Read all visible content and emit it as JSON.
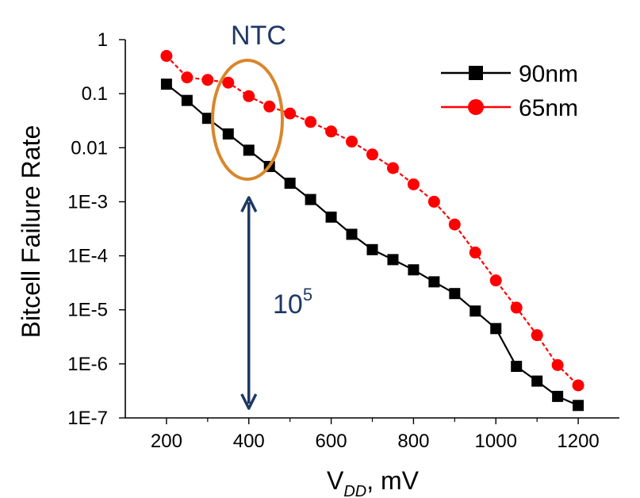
{
  "chart_data": {
    "type": "line",
    "title": "",
    "xlabel": {
      "main": "V",
      "sub": "DD",
      "rest": ", mV"
    },
    "ylabel": "Bitcell Failure Rate",
    "y_scale": "log",
    "xlim": [
      100,
      1300
    ],
    "ylim": [
      1e-07,
      1
    ],
    "grid": false,
    "legend_position": "top-right",
    "x_ticks": [
      200,
      400,
      600,
      800,
      1000,
      1200
    ],
    "x_tick_labels": [
      "200",
      "400",
      "600",
      "800",
      "1000",
      "1200"
    ],
    "y_ticks": [
      1,
      0.1,
      0.01,
      0.001,
      0.0001,
      1e-05,
      1e-06,
      1e-07
    ],
    "y_tick_labels": [
      "1",
      "0.1",
      "0.01",
      "1E-3",
      "1E-4",
      "1E-5",
      "1E-6",
      "1E-7"
    ],
    "series": [
      {
        "name": "90nm",
        "color": "#000000",
        "marker": "square",
        "x": [
          200,
          250,
          300,
          350,
          400,
          450,
          500,
          550,
          600,
          650,
          700,
          750,
          800,
          850,
          900,
          950,
          1000,
          1050,
          1100,
          1150,
          1200
        ],
        "values": [
          0.15,
          0.075,
          0.035,
          0.018,
          0.009,
          0.0045,
          0.0022,
          0.0011,
          0.00052,
          0.00025,
          0.00013,
          8.5e-05,
          5.5e-05,
          3.3e-05,
          2e-05,
          9.5e-06,
          4.5e-06,
          9e-07,
          4.8e-07,
          2.5e-07,
          1.7e-07
        ]
      },
      {
        "name": "65nm",
        "color": "#ff0000",
        "marker": "circle",
        "x": [
          200,
          250,
          300,
          350,
          400,
          450,
          500,
          550,
          600,
          650,
          700,
          750,
          800,
          850,
          900,
          950,
          1000,
          1050,
          1100,
          1150,
          1200
        ],
        "values": [
          0.5,
          0.2,
          0.18,
          0.16,
          0.09,
          0.058,
          0.043,
          0.03,
          0.02,
          0.013,
          0.0075,
          0.0042,
          0.0021,
          0.001,
          0.00038,
          0.000115,
          3.5e-05,
          1.1e-05,
          3.4e-06,
          9.5e-07,
          4e-07
        ]
      }
    ],
    "annotations": {
      "ntc_label": "NTC",
      "ntc_ellipse_color": "#d9862b",
      "ratio_label_base": "10",
      "ratio_label_exp": "5",
      "arrow_color": "#1f3864",
      "arrow_x": 400,
      "arrow_y_top": 0.0012,
      "arrow_y_bottom": 1.5e-07
    }
  }
}
